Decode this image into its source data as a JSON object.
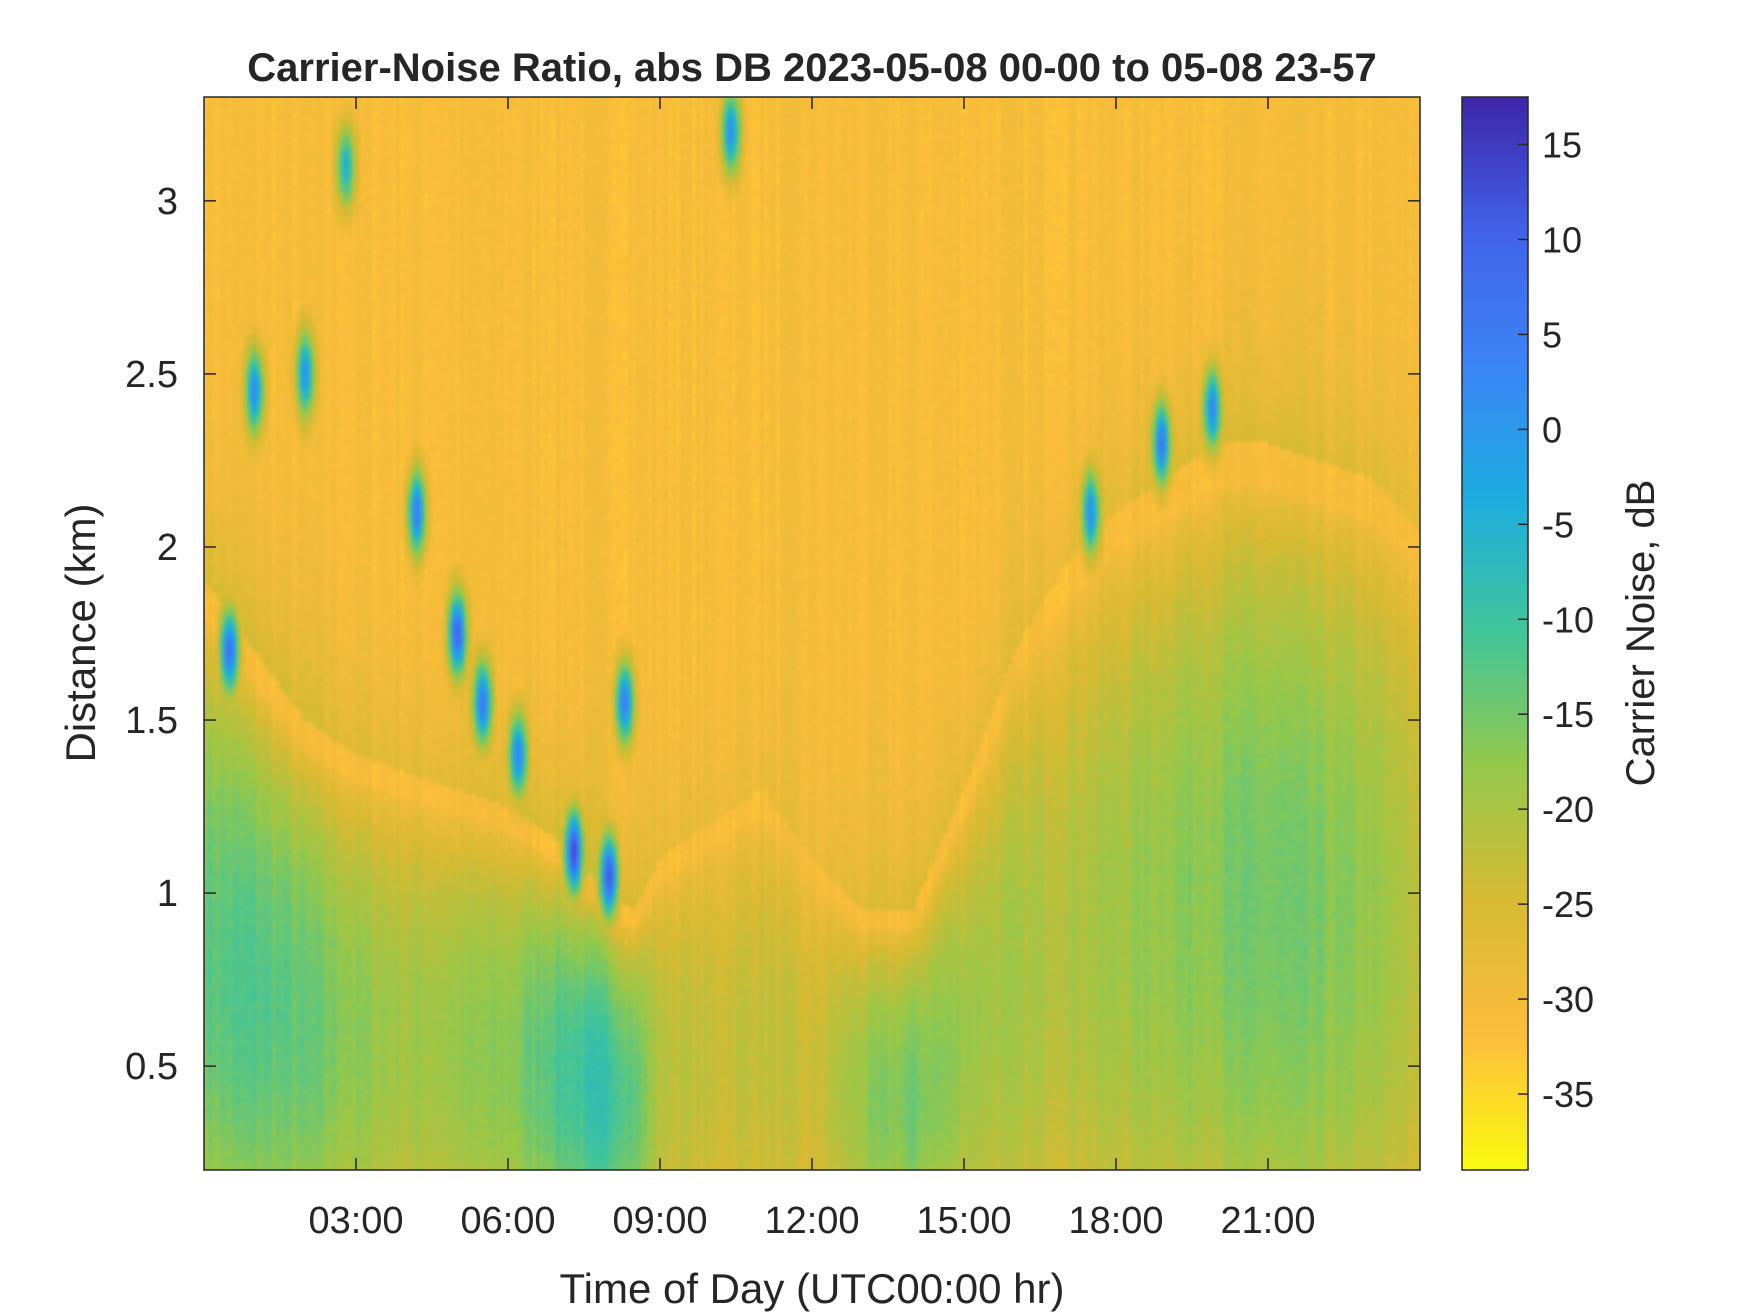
{
  "chart_data": {
    "type": "heatmap",
    "title": "Carrier-Noise Ratio, abs DB 2023-05-08 00-00 to 05-08 23-57",
    "xlabel": "Time of Day (UTC00:00 hr)",
    "ylabel": "Distance (km)",
    "colorbar_label": "Carrier Noise, dB",
    "x_unit": "hours",
    "xlim": [
      0,
      24
    ],
    "ylim": [
      0.2,
      3.3
    ],
    "clim": [
      -39,
      17.5
    ],
    "x_ticks": [
      3,
      6,
      9,
      12,
      15,
      18,
      21
    ],
    "x_tick_labels": [
      "03:00",
      "06:00",
      "09:00",
      "12:00",
      "15:00",
      "18:00",
      "21:00"
    ],
    "y_ticks": [
      0.5,
      1,
      1.5,
      2,
      2.5,
      3
    ],
    "y_tick_labels": [
      "0.5",
      "1",
      "1.5",
      "2",
      "2.5",
      "3"
    ],
    "colorbar_ticks": [
      15,
      10,
      5,
      0,
      -5,
      -10,
      -15,
      -20,
      -25,
      -30,
      -35
    ],
    "colorbar_tick_labels": [
      "15",
      "10",
      "5",
      "0",
      "-5",
      "-10",
      "-15",
      "-20",
      "-25",
      "-30",
      "-35"
    ],
    "colormap": [
      "#f9fb0e",
      "#fdbd3c",
      "#d8ba32",
      "#96c84a",
      "#42c598",
      "#1caddf",
      "#3b85f6",
      "#4162ea",
      "#3e26a8"
    ],
    "background_level_db": -31,
    "mixing_layer_top_km": {
      "hours": [
        0.0,
        1.0,
        2.0,
        3.0,
        4.0,
        5.0,
        6.0,
        7.0,
        8.0,
        8.5,
        9.0,
        10.0,
        11.0,
        12.0,
        13.0,
        14.0,
        15.0,
        16.0,
        17.0,
        18.0,
        19.0,
        20.0,
        21.0,
        22.0,
        23.0,
        24.0
      ],
      "top_km": [
        1.9,
        1.7,
        1.5,
        1.4,
        1.35,
        1.3,
        1.25,
        1.15,
        1.0,
        0.95,
        1.1,
        1.2,
        1.3,
        1.1,
        0.95,
        0.95,
        1.3,
        1.7,
        1.95,
        2.1,
        2.2,
        2.3,
        2.3,
        2.25,
        2.2,
        2.05
      ],
      "core_db": [
        -13,
        -12,
        -14,
        -17,
        -19,
        -18,
        -17,
        -11,
        -9,
        -13,
        -21,
        -23,
        -22,
        -24,
        -18,
        -15,
        -18,
        -20,
        -20,
        -19,
        -17,
        -16,
        -15,
        -16,
        -18,
        -22
      ]
    },
    "cloud_features": [
      {
        "hour": 0.5,
        "dist_km": 1.7,
        "db": 8
      },
      {
        "hour": 1.0,
        "dist_km": 2.45,
        "db": 2
      },
      {
        "hour": 2.0,
        "dist_km": 2.5,
        "db": 0
      },
      {
        "hour": 2.8,
        "dist_km": 3.1,
        "db": -4
      },
      {
        "hour": 4.2,
        "dist_km": 2.1,
        "db": 4
      },
      {
        "hour": 5.0,
        "dist_km": 1.75,
        "db": 10
      },
      {
        "hour": 5.5,
        "dist_km": 1.55,
        "db": 6
      },
      {
        "hour": 6.2,
        "dist_km": 1.4,
        "db": 4
      },
      {
        "hour": 7.3,
        "dist_km": 1.12,
        "db": 14
      },
      {
        "hour": 8.0,
        "dist_km": 1.05,
        "db": 12
      },
      {
        "hour": 8.3,
        "dist_km": 1.55,
        "db": 6
      },
      {
        "hour": 10.4,
        "dist_km": 3.2,
        "db": 2
      },
      {
        "hour": 17.5,
        "dist_km": 2.1,
        "db": 2
      },
      {
        "hour": 18.9,
        "dist_km": 2.3,
        "db": 6
      },
      {
        "hour": 19.9,
        "dist_km": 2.4,
        "db": 4
      }
    ]
  }
}
